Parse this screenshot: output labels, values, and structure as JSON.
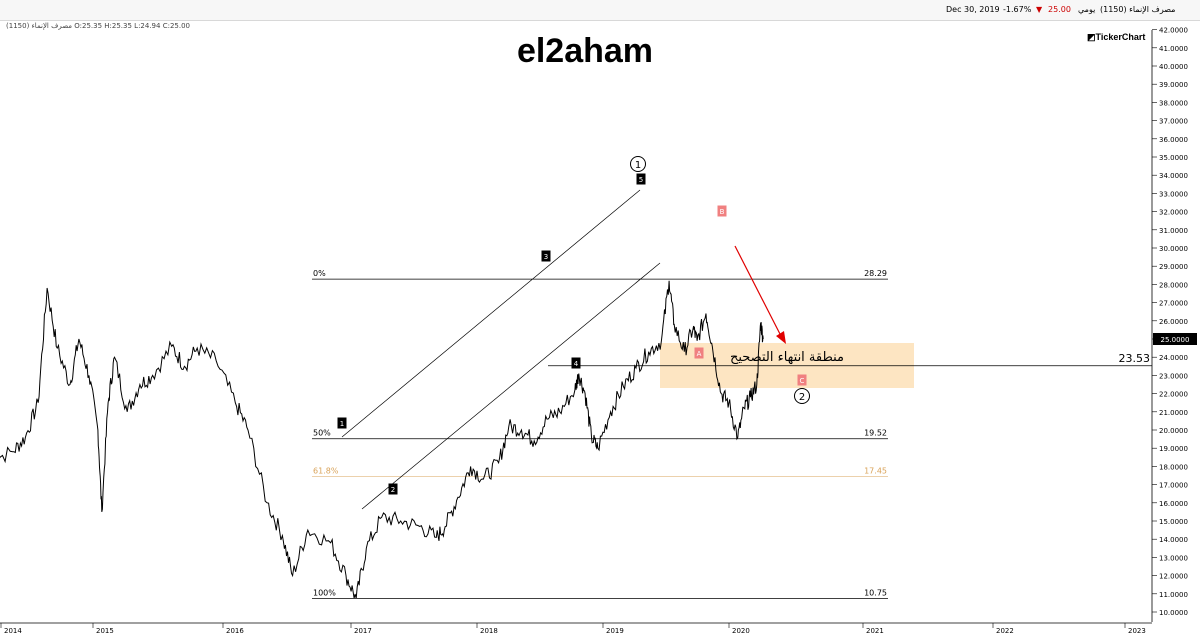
{
  "header": {
    "symbol": "مصرف الإنماء (1150)",
    "interval": "يومي",
    "last": "25.00",
    "change": "-1.67%",
    "date": "Dec 30, 2019",
    "ohlc": "مصرف الإنماء (1150) O:25.35 H:25.35 L:24.94 C:25.00"
  },
  "brand": "TickerChart",
  "title": "el2aham",
  "colors": {
    "price": "#000000",
    "last_badge": "#000000",
    "down": "#cc0000",
    "zone": "#fde5c2",
    "arrow": "#e00000",
    "fib618": "#d9a35a",
    "waveB": "#f08080"
  },
  "chart_data": {
    "type": "line",
    "x_ticks": [
      "2014",
      "2015",
      "2016",
      "2017",
      "2018",
      "2019",
      "2020",
      "2021",
      "2022",
      "2023"
    ],
    "y_ticks": [
      "42.0000",
      "41.0000",
      "40.0000",
      "39.0000",
      "38.0000",
      "37.0000",
      "36.0000",
      "35.0000",
      "34.0000",
      "33.0000",
      "32.0000",
      "31.0000",
      "30.0000",
      "29.0000",
      "28.0000",
      "27.0000",
      "26.0000",
      "25.0000",
      "24.0000",
      "23.0000",
      "22.0000",
      "21.0000",
      "20.0000",
      "19.0000",
      "18.0000",
      "17.0000",
      "16.0000",
      "15.0000",
      "14.0000",
      "13.0000",
      "12.0000",
      "11.0000",
      "10.0000"
    ],
    "ylim": [
      10,
      42
    ],
    "last_value": "25.0000",
    "series": [
      {
        "points": [
          [
            2013.9,
            18.3
          ],
          [
            2014.1,
            18.8
          ],
          [
            2014.2,
            19.6
          ],
          [
            2014.3,
            21.5
          ],
          [
            2014.37,
            27.8
          ],
          [
            2014.45,
            24.5
          ],
          [
            2014.55,
            22.5
          ],
          [
            2014.62,
            25.0
          ],
          [
            2014.7,
            23.0
          ],
          [
            2014.77,
            20.0
          ],
          [
            2014.8,
            15.5
          ],
          [
            2014.85,
            21.5
          ],
          [
            2014.9,
            24.0
          ],
          [
            2015.0,
            21.0
          ],
          [
            2015.1,
            22.5
          ],
          [
            2015.2,
            23.0
          ],
          [
            2015.35,
            24.6
          ],
          [
            2015.45,
            23.5
          ],
          [
            2015.55,
            24.5
          ],
          [
            2015.7,
            23.8
          ],
          [
            2015.85,
            21.5
          ],
          [
            2015.95,
            20.0
          ],
          [
            2016.1,
            16.0
          ],
          [
            2016.22,
            14.2
          ],
          [
            2016.3,
            12.0
          ],
          [
            2016.42,
            14.5
          ],
          [
            2016.6,
            13.8
          ],
          [
            2016.72,
            12.0
          ],
          [
            2016.8,
            10.75
          ],
          [
            2016.88,
            13.5
          ],
          [
            2017.0,
            15.2
          ],
          [
            2017.15,
            15.0
          ],
          [
            2017.3,
            14.7
          ],
          [
            2017.43,
            14.1
          ],
          [
            2017.5,
            14.7
          ],
          [
            2017.6,
            16.3
          ],
          [
            2017.7,
            18.0
          ],
          [
            2017.8,
            17.3
          ],
          [
            2017.92,
            18.2
          ],
          [
            2018.0,
            20.2
          ],
          [
            2018.1,
            20.0
          ],
          [
            2018.2,
            19.4
          ],
          [
            2018.3,
            20.6
          ],
          [
            2018.4,
            21.0
          ],
          [
            2018.52,
            22.2
          ],
          [
            2018.55,
            23.1
          ],
          [
            2018.6,
            22.0
          ],
          [
            2018.65,
            19.6
          ],
          [
            2018.7,
            19.0
          ],
          [
            2018.8,
            21.0
          ],
          [
            2018.9,
            22.4
          ],
          [
            2019.0,
            23.4
          ],
          [
            2019.1,
            24.3
          ],
          [
            2019.2,
            24.9
          ],
          [
            2019.26,
            28.2
          ],
          [
            2019.3,
            25.8
          ],
          [
            2019.38,
            24.3
          ],
          [
            2019.45,
            25.6
          ],
          [
            2019.48,
            24.9
          ],
          [
            2019.55,
            26.4
          ],
          [
            2019.6,
            24.6
          ],
          [
            2019.67,
            22.0
          ],
          [
            2019.73,
            21.5
          ],
          [
            2019.8,
            19.6
          ],
          [
            2019.85,
            21.2
          ],
          [
            2019.9,
            21.8
          ],
          [
            2019.95,
            22.5
          ],
          [
            2019.98,
            25.9
          ],
          [
            2020.0,
            25.0
          ]
        ]
      }
    ],
    "fibonacci": [
      {
        "label": "0%",
        "value": "28.29"
      },
      {
        "label": "50%",
        "value": "19.52"
      },
      {
        "label": "61.8%",
        "value": "17.45"
      },
      {
        "label": "100%",
        "value": "10.75"
      }
    ],
    "horizontal_level": "23.53",
    "wave_labels": [
      "1",
      "2",
      "3",
      "4",
      "5",
      "A",
      "B",
      "C"
    ],
    "circle_labels": [
      "1",
      "2"
    ],
    "annotations": [
      "منطقة انتهاء التصحيح"
    ]
  }
}
